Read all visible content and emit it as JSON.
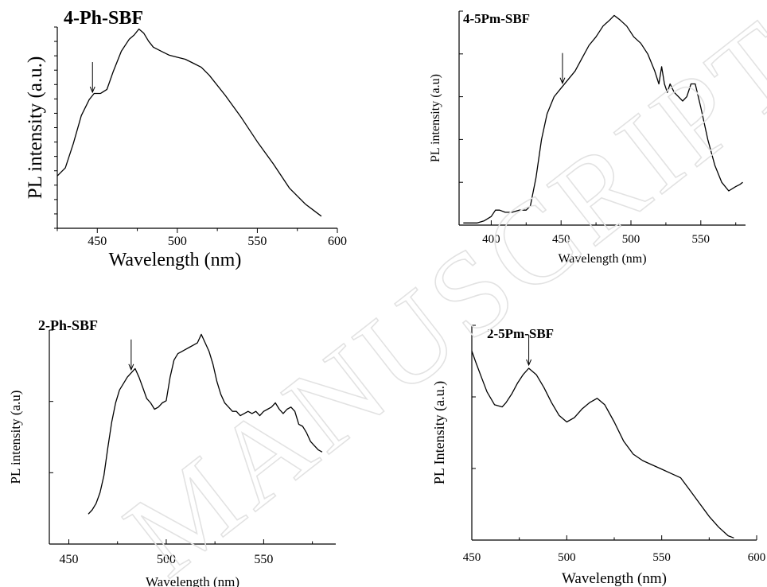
{
  "watermark": "MANUSCRIPT",
  "chart_data": [
    {
      "type": "line",
      "title": "4-Ph-SBF",
      "xlabel": "Wavelength (nm)",
      "ylabel": "PL intensity (a.u.)",
      "xlim": [
        425,
        600
      ],
      "xticks": [
        450,
        500,
        550,
        600
      ],
      "ylim": [
        0,
        1
      ],
      "arrow_x": 447,
      "series": [
        {
          "x": [
            425,
            430,
            435,
            440,
            445,
            448,
            452,
            456,
            460,
            465,
            470,
            473,
            476,
            479,
            482,
            485,
            490,
            495,
            500,
            505,
            510,
            515,
            520,
            530,
            540,
            550,
            560,
            570,
            580,
            585,
            590
          ],
          "y": [
            0.26,
            0.3,
            0.42,
            0.56,
            0.64,
            0.67,
            0.67,
            0.69,
            0.78,
            0.88,
            0.94,
            0.96,
            0.99,
            0.97,
            0.93,
            0.9,
            0.88,
            0.86,
            0.85,
            0.84,
            0.82,
            0.8,
            0.76,
            0.66,
            0.55,
            0.43,
            0.32,
            0.2,
            0.12,
            0.09,
            0.06
          ]
        }
      ]
    },
    {
      "type": "line",
      "title": "4-5Pm-SBF",
      "xlabel": "Wavelength (nm)",
      "ylabel": "PL intensity (a.u)",
      "xlim": [
        377,
        582
      ],
      "xticks": [
        400,
        450,
        500,
        550
      ],
      "ylim": [
        0,
        1
      ],
      "arrow_x": 451,
      "series": [
        {
          "x": [
            380,
            385,
            390,
            395,
            400,
            403,
            406,
            410,
            415,
            420,
            425,
            428,
            432,
            436,
            440,
            445,
            450,
            455,
            460,
            465,
            470,
            475,
            480,
            485,
            488,
            492,
            497,
            502,
            507,
            512,
            517,
            520,
            522,
            524,
            526,
            528,
            531,
            534,
            537,
            540,
            543,
            546,
            550,
            555,
            560,
            565,
            570,
            575,
            578,
            580
          ],
          "y": [
            0.01,
            0.01,
            0.01,
            0.02,
            0.04,
            0.07,
            0.07,
            0.06,
            0.06,
            0.07,
            0.07,
            0.09,
            0.22,
            0.4,
            0.52,
            0.6,
            0.64,
            0.68,
            0.72,
            0.78,
            0.84,
            0.88,
            0.93,
            0.96,
            0.98,
            0.96,
            0.93,
            0.88,
            0.85,
            0.8,
            0.72,
            0.66,
            0.74,
            0.66,
            0.62,
            0.66,
            0.62,
            0.6,
            0.58,
            0.6,
            0.66,
            0.66,
            0.55,
            0.4,
            0.28,
            0.2,
            0.16,
            0.18,
            0.19,
            0.2
          ]
        }
      ]
    },
    {
      "type": "line",
      "title": "2-Ph-SBF",
      "xlabel": "Wavelength (nm)",
      "ylabel": "PL intensity (a.u)",
      "xlim": [
        440,
        587
      ],
      "xticks": [
        450,
        500,
        550
      ],
      "ylim": [
        0,
        1
      ],
      "arrow_x": 482,
      "series": [
        {
          "x": [
            460,
            462,
            464,
            466,
            468,
            470,
            472,
            474,
            476,
            478,
            480,
            482,
            484,
            486,
            488,
            490,
            492,
            494,
            496,
            498,
            500,
            502,
            504,
            506,
            508,
            510,
            512,
            514,
            516,
            518,
            520,
            522,
            524,
            526,
            528,
            530,
            532,
            534,
            536,
            538,
            540,
            542,
            544,
            546,
            548,
            550,
            552,
            554,
            556,
            558,
            560,
            562,
            564,
            566,
            568,
            570,
            572,
            574,
            576,
            578,
            580
          ],
          "y": [
            0.14,
            0.16,
            0.19,
            0.24,
            0.32,
            0.45,
            0.57,
            0.66,
            0.72,
            0.75,
            0.78,
            0.8,
            0.82,
            0.78,
            0.73,
            0.68,
            0.66,
            0.63,
            0.64,
            0.66,
            0.67,
            0.78,
            0.86,
            0.89,
            0.9,
            0.91,
            0.92,
            0.93,
            0.94,
            0.98,
            0.94,
            0.9,
            0.84,
            0.76,
            0.7,
            0.66,
            0.64,
            0.62,
            0.62,
            0.6,
            0.61,
            0.62,
            0.61,
            0.62,
            0.6,
            0.62,
            0.63,
            0.64,
            0.66,
            0.63,
            0.61,
            0.63,
            0.64,
            0.62,
            0.56,
            0.55,
            0.52,
            0.48,
            0.46,
            0.44,
            0.43
          ]
        }
      ]
    },
    {
      "type": "line",
      "title": "2-5Pm-SBF",
      "xlabel": "Wavelength (nm)",
      "ylabel": "PL Intensity (a.u.)",
      "xlim": [
        450,
        600
      ],
      "xticks": [
        450,
        500,
        550,
        600
      ],
      "ylim": [
        0,
        1
      ],
      "arrow_x": 480,
      "series": [
        {
          "x": [
            450,
            452,
            455,
            458,
            462,
            466,
            468,
            471,
            474,
            477,
            480,
            484,
            488,
            492,
            496,
            500,
            504,
            508,
            512,
            516,
            520,
            525,
            530,
            535,
            540,
            545,
            550,
            555,
            560,
            565,
            570,
            575,
            580,
            585,
            588
          ],
          "y": [
            0.88,
            0.83,
            0.76,
            0.69,
            0.63,
            0.62,
            0.64,
            0.68,
            0.73,
            0.77,
            0.8,
            0.77,
            0.71,
            0.64,
            0.58,
            0.55,
            0.57,
            0.61,
            0.64,
            0.66,
            0.63,
            0.55,
            0.46,
            0.4,
            0.37,
            0.35,
            0.33,
            0.31,
            0.29,
            0.23,
            0.17,
            0.11,
            0.06,
            0.02,
            0.01
          ]
        }
      ]
    }
  ]
}
